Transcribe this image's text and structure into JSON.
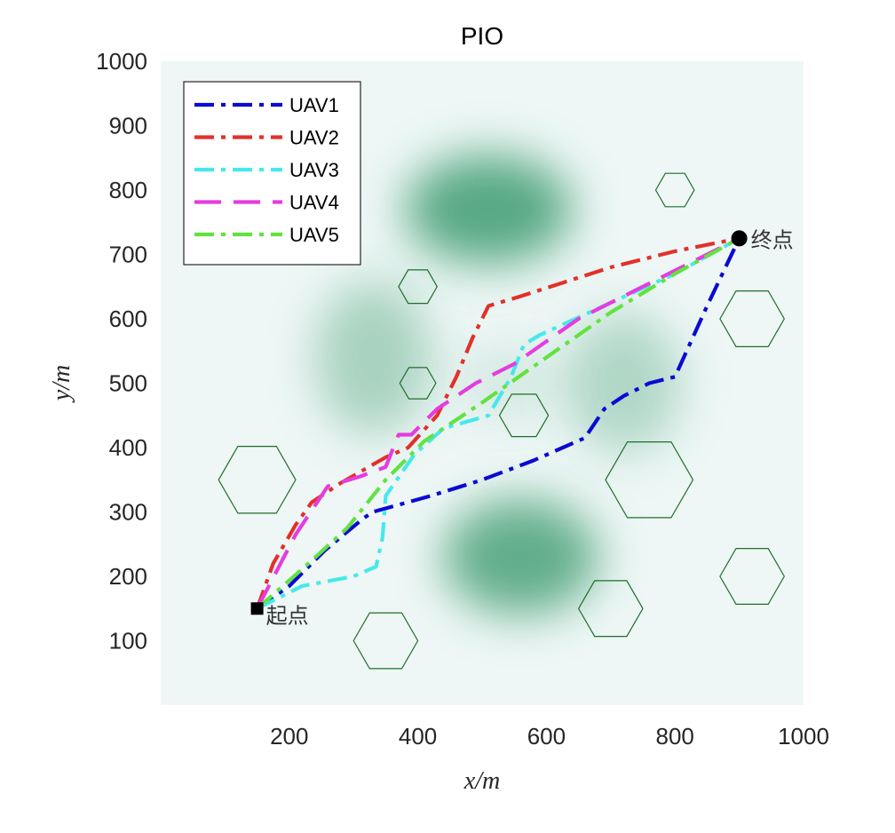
{
  "chart_data": {
    "type": "line",
    "title": "PIO",
    "xlabel": "x/m",
    "ylabel": "y/m",
    "xlim": [
      0,
      1000
    ],
    "ylim": [
      0,
      1000
    ],
    "xticks": [
      200,
      400,
      600,
      800,
      1000
    ],
    "yticks": [
      100,
      200,
      300,
      400,
      500,
      600,
      700,
      800,
      900,
      1000
    ],
    "legend_position": "top-left",
    "start": {
      "label": "起点",
      "x": 150,
      "y": 150
    },
    "end": {
      "label": "终点",
      "x": 900,
      "y": 725
    },
    "colors": {
      "background": "#eef7f6",
      "hill": "#3d9b6e",
      "obstacle": "#1f6e2c"
    },
    "hills": [
      {
        "x": 510,
        "y": 770,
        "sx": 130,
        "sy": 85,
        "peak": 0.85
      },
      {
        "x": 560,
        "y": 230,
        "sx": 120,
        "sy": 90,
        "peak": 0.8
      },
      {
        "x": 330,
        "y": 540,
        "sx": 90,
        "sy": 120,
        "peak": 0.4
      },
      {
        "x": 720,
        "y": 500,
        "sx": 90,
        "sy": 110,
        "peak": 0.35
      },
      {
        "x": 540,
        "y": 500,
        "sx": 80,
        "sy": 60,
        "peak": 0.15
      }
    ],
    "obstacles": [
      {
        "x": 150,
        "y": 350,
        "r": 60
      },
      {
        "x": 350,
        "y": 100,
        "r": 50
      },
      {
        "x": 400,
        "y": 650,
        "r": 30
      },
      {
        "x": 400,
        "y": 500,
        "r": 28
      },
      {
        "x": 565,
        "y": 450,
        "r": 38
      },
      {
        "x": 700,
        "y": 150,
        "r": 50
      },
      {
        "x": 760,
        "y": 350,
        "r": 68
      },
      {
        "x": 800,
        "y": 800,
        "r": 30
      },
      {
        "x": 920,
        "y": 600,
        "r": 50
      },
      {
        "x": 920,
        "y": 200,
        "r": 50
      }
    ],
    "series": [
      {
        "name": "UAV1",
        "color": "#0a0ad2",
        "dash": "22,8,5,8",
        "points": [
          [
            150,
            150
          ],
          [
            200,
            185
          ],
          [
            255,
            240
          ],
          [
            315,
            290
          ],
          [
            330,
            300
          ],
          [
            420,
            325
          ],
          [
            500,
            350
          ],
          [
            580,
            380
          ],
          [
            660,
            415
          ],
          [
            690,
            460
          ],
          [
            720,
            480
          ],
          [
            760,
            500
          ],
          [
            800,
            510
          ],
          [
            850,
            620
          ],
          [
            900,
            725
          ]
        ]
      },
      {
        "name": "UAV2",
        "color": "#e2302b",
        "dash": "22,8,5,8",
        "points": [
          [
            150,
            150
          ],
          [
            175,
            220
          ],
          [
            210,
            280
          ],
          [
            235,
            315
          ],
          [
            280,
            345
          ],
          [
            350,
            385
          ],
          [
            385,
            400
          ],
          [
            430,
            450
          ],
          [
            460,
            510
          ],
          [
            485,
            570
          ],
          [
            510,
            620
          ],
          [
            560,
            635
          ],
          [
            700,
            680
          ],
          [
            800,
            705
          ],
          [
            900,
            725
          ]
        ]
      },
      {
        "name": "UAV3",
        "color": "#47e8eb",
        "dash": "22,8,5,8",
        "points": [
          [
            150,
            150
          ],
          [
            220,
            185
          ],
          [
            300,
            200
          ],
          [
            335,
            215
          ],
          [
            345,
            260
          ],
          [
            350,
            325
          ],
          [
            395,
            390
          ],
          [
            440,
            430
          ],
          [
            510,
            450
          ],
          [
            545,
            510
          ],
          [
            565,
            560
          ],
          [
            590,
            575
          ],
          [
            700,
            625
          ],
          [
            800,
            670
          ],
          [
            900,
            725
          ]
        ]
      },
      {
        "name": "UAV4",
        "color": "#e43ddf",
        "dash": "30,14",
        "points": [
          [
            150,
            150
          ],
          [
            210,
            265
          ],
          [
            260,
            340
          ],
          [
            310,
            355
          ],
          [
            350,
            370
          ],
          [
            370,
            420
          ],
          [
            390,
            420
          ],
          [
            430,
            460
          ],
          [
            490,
            500
          ],
          [
            550,
            530
          ],
          [
            650,
            600
          ],
          [
            750,
            650
          ],
          [
            850,
            700
          ],
          [
            900,
            725
          ]
        ]
      },
      {
        "name": "UAV5",
        "color": "#62e23f",
        "dash": "22,8,5,8",
        "points": [
          [
            150,
            150
          ],
          [
            230,
            220
          ],
          [
            290,
            275
          ],
          [
            350,
            350
          ],
          [
            410,
            410
          ],
          [
            500,
            470
          ],
          [
            600,
            540
          ],
          [
            700,
            610
          ],
          [
            800,
            670
          ],
          [
            900,
            725
          ]
        ]
      }
    ]
  }
}
